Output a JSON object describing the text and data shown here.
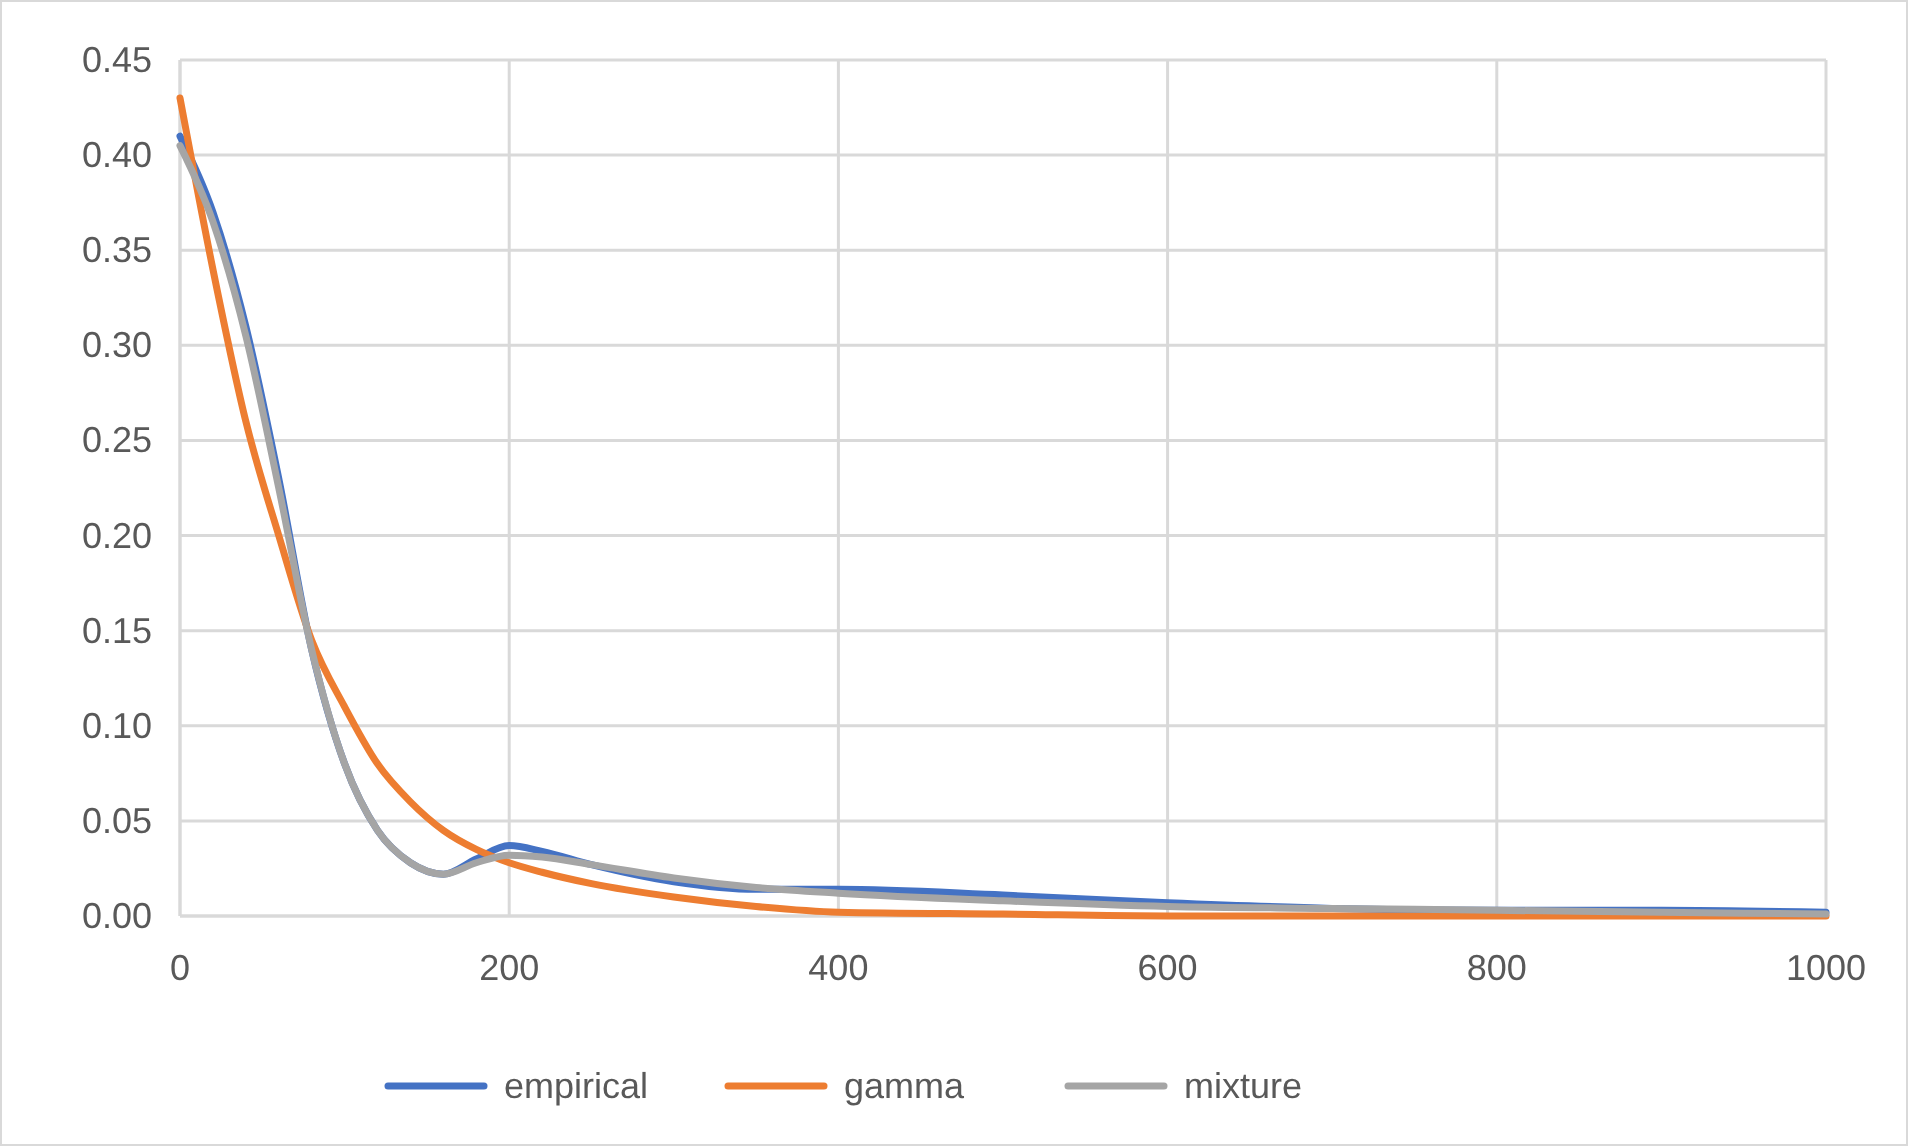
{
  "chart_data": {
    "type": "line",
    "xlim": [
      0,
      1000
    ],
    "xticks": [
      0,
      200,
      400,
      600,
      800,
      1000
    ],
    "ylim": [
      0,
      0.45
    ],
    "yticks": [
      {
        "value": 0,
        "label": "0.00"
      },
      {
        "value": 0.05,
        "label": "0.05"
      },
      {
        "value": 0.1,
        "label": "0.10"
      },
      {
        "value": 0.15,
        "label": "0.15"
      },
      {
        "value": 0.2,
        "label": "0.20"
      },
      {
        "value": 0.25,
        "label": "0.25"
      },
      {
        "value": 0.3,
        "label": "0.30"
      },
      {
        "value": 0.35,
        "label": "0.35"
      },
      {
        "value": 0.4,
        "label": "0.40"
      },
      {
        "value": 0.45,
        "label": "0.45"
      }
    ],
    "grid": true,
    "legend": "bottom",
    "line_style": "solid",
    "x": [
      0,
      20,
      40,
      60,
      80,
      100,
      120,
      140,
      160,
      180,
      200,
      220,
      250,
      300,
      350,
      400,
      500,
      600,
      700,
      800,
      900,
      1000
    ],
    "series": [
      {
        "name": "empirical",
        "color": "#4472c4",
        "values": [
          0.41,
          0.37,
          0.31,
          0.23,
          0.14,
          0.08,
          0.045,
          0.028,
          0.022,
          0.03,
          0.037,
          0.034,
          0.027,
          0.018,
          0.014,
          0.014,
          0.011,
          0.007,
          0.004,
          0.003,
          0.003,
          0.002
        ]
      },
      {
        "name": "gamma",
        "color": "#ed7d31",
        "values": [
          0.43,
          0.34,
          0.26,
          0.2,
          0.145,
          0.11,
          0.08,
          0.06,
          0.045,
          0.035,
          0.028,
          0.023,
          0.017,
          0.01,
          0.005,
          0.002,
          0.001,
          0,
          0,
          0,
          0,
          0
        ]
      },
      {
        "name": "mixture",
        "color": "#a5a5a5",
        "values": [
          0.405,
          0.365,
          0.305,
          0.225,
          0.14,
          0.08,
          0.045,
          0.028,
          0.022,
          0.028,
          0.032,
          0.031,
          0.027,
          0.02,
          0.015,
          0.012,
          0.008,
          0.005,
          0.004,
          0.003,
          0.002,
          0.001
        ]
      }
    ]
  }
}
